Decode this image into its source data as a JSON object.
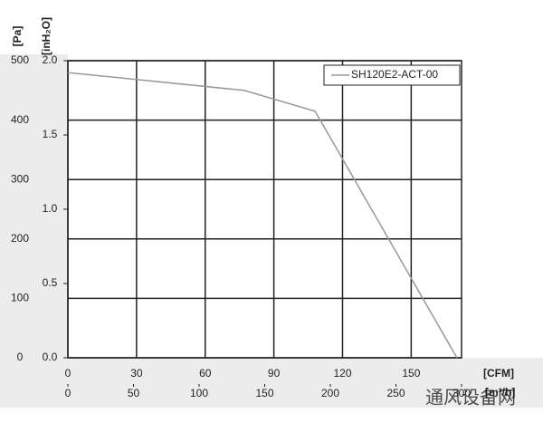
{
  "chart_data": {
    "type": "line",
    "y_label": "[inH₂O]",
    "y2_label": "[Pa]",
    "x_label": "[CFM]",
    "x2_label": "[m³/h]",
    "watermark": "通风设备网",
    "x": [
      0,
      77,
      108,
      170
    ],
    "series": [
      {
        "name": "SH120E2-ACT-00",
        "color": "#999999",
        "values": [
          1.92,
          1.8,
          1.66,
          0
        ]
      }
    ],
    "xlim": [
      0,
      172
    ],
    "xticks": [
      0,
      30,
      60,
      90,
      120,
      150
    ],
    "x2lim": [
      0,
      300
    ],
    "x2ticks": [
      0,
      50,
      100,
      150,
      200,
      250,
      300
    ],
    "ylim": [
      0,
      2
    ],
    "yticks": [
      {
        "value": 0,
        "label": "0.0"
      },
      0.5,
      {
        "value": 1,
        "label": "1.0"
      },
      1.5,
      {
        "value": 2,
        "label": "2.0"
      }
    ],
    "y2lim": [
      0,
      500
    ],
    "y2ticks": [
      0,
      100,
      200,
      300,
      400,
      500
    ],
    "grid": true,
    "legend": "top-right"
  }
}
